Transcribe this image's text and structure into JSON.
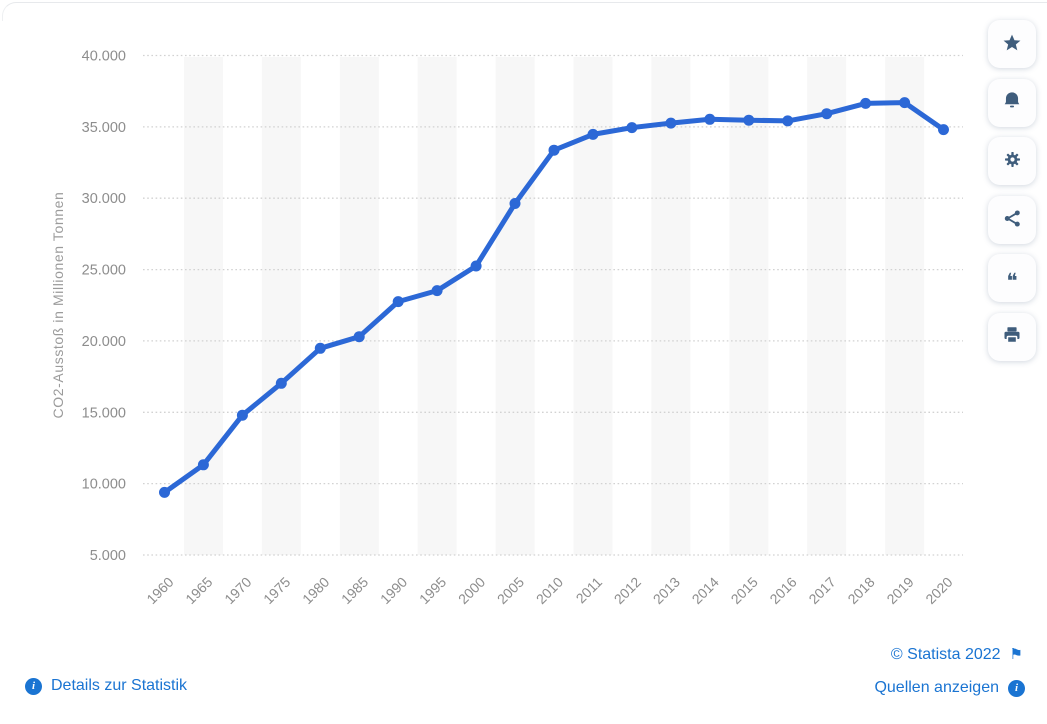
{
  "chart_data": {
    "type": "line",
    "title": "",
    "xlabel": "",
    "ylabel": "CO2-Ausstoß in Millionen Tonnen",
    "categories": [
      "1960",
      "1965",
      "1970",
      "1975",
      "1980",
      "1985",
      "1990",
      "1995",
      "2000",
      "2005",
      "2010",
      "2011",
      "2012",
      "2013",
      "2014",
      "2015",
      "2016",
      "2017",
      "2018",
      "2019",
      "2020"
    ],
    "series": [
      {
        "name": "CO2-Ausstoß in Millionen Tonnen",
        "values": [
          9388,
          11322,
          14799,
          17032,
          19480,
          20295,
          22757,
          23526,
          25249,
          29629,
          33364,
          34474,
          34949,
          35262,
          35529,
          35467,
          35415,
          35925,
          36646,
          36702,
          34807
        ]
      }
    ],
    "ylim": [
      5000,
      40000
    ],
    "ytick_values": [
      5000,
      10000,
      15000,
      20000,
      25000,
      30000,
      35000,
      40000
    ],
    "ytick_labels": [
      "5.000",
      "10.000",
      "15.000",
      "20.000",
      "25.000",
      "30.000",
      "35.000",
      "40.000"
    ],
    "grid": "horizontal dotted gridlines",
    "plot_bands": "alternating light vertical bands on every second category",
    "legend": "none",
    "line_color": "#2c68d6",
    "point_radius": 5.5
  },
  "toolbar": {
    "buttons": [
      {
        "id": "favorite",
        "icon": "star-icon"
      },
      {
        "id": "notification",
        "icon": "bell-icon"
      },
      {
        "id": "settings",
        "icon": "gear-icon"
      },
      {
        "id": "share",
        "icon": "share-icon"
      },
      {
        "id": "cite",
        "icon": "quote-icon"
      },
      {
        "id": "print",
        "icon": "print-icon"
      }
    ]
  },
  "footer": {
    "details_label": "Details zur Statistik",
    "copyright": "© Statista 2022",
    "sources_label": "Quellen anzeigen"
  },
  "colors": {
    "line_blue": "#2c68d6",
    "link_blue": "#1a74d2",
    "icon_slate": "#3f5d7c",
    "tick_gray": "#8d8d8d",
    "band_gray": "#f7f7f7",
    "grid_gray": "#d2d2d2"
  }
}
